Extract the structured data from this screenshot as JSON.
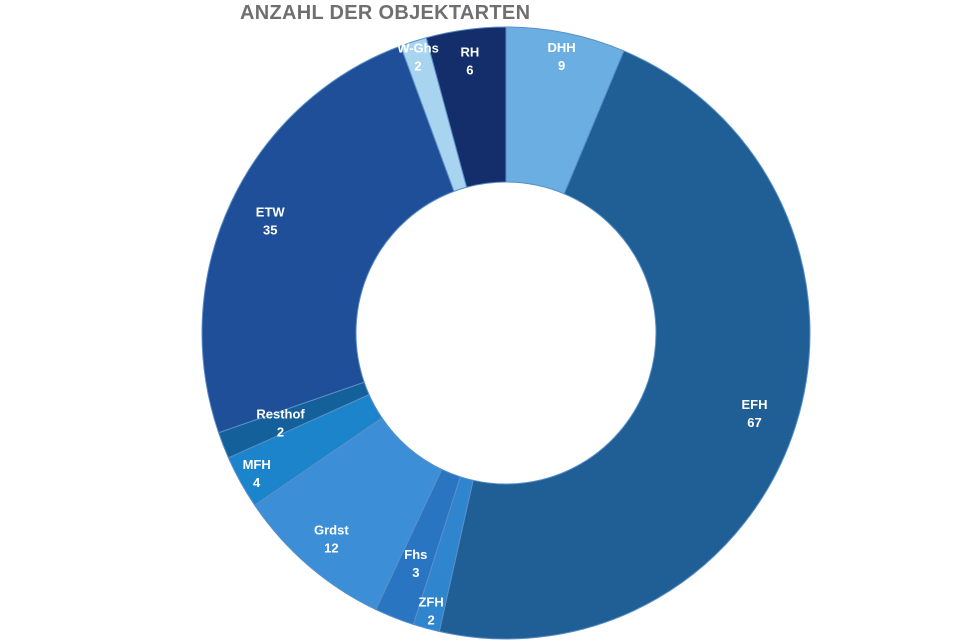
{
  "chart_data": {
    "type": "pie",
    "title": "ANZAHL DER OBJEKTARTEN",
    "categories": [
      "DHH",
      "EFH",
      "ZFH",
      "Fhs",
      "Grdst",
      "MFH",
      "Resthof",
      "ETW",
      "W-Ghs",
      "RH"
    ],
    "values": [
      9,
      67,
      2,
      3,
      12,
      4,
      2,
      35,
      2,
      6
    ],
    "colors": [
      "#6aaee2",
      "#1f5f96",
      "#2f86cf",
      "#2a75c2",
      "#3c8fd6",
      "#1b84cb",
      "#14609b",
      "#1e4f98",
      "#a9d4f0",
      "#132e6b"
    ],
    "label_colors": [
      "#ffffff",
      "#ffffff",
      "#ffffff",
      "#ffffff",
      "#ffffff",
      "#ffffff",
      "#ffffff",
      "#ffffff",
      "#ffffff",
      "#ffffff"
    ],
    "donut": true,
    "legend": "none"
  }
}
